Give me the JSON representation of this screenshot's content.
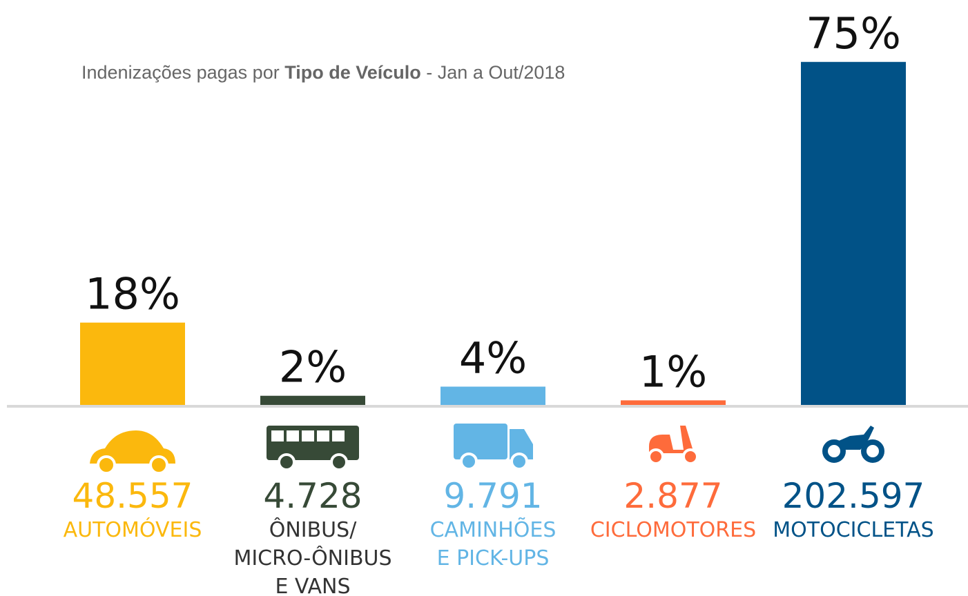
{
  "chart_data": {
    "type": "bar",
    "title": {
      "before": "Indenizações pagas por",
      "bold": "Tipo de Veículo",
      "after": "- Jan a Out/2018"
    },
    "categories": [
      [
        "AUTOMÓVEIS"
      ],
      [
        "ÔNIBUS/",
        "MICRO-ÔNIBUS",
        "E VANS"
      ],
      [
        "CAMINHÕES",
        "E PICK-UPS"
      ],
      [
        "CICLOMOTORES"
      ],
      [
        "MOTOCICLETAS"
      ]
    ],
    "values": [
      18,
      2,
      4,
      1,
      75
    ],
    "value_labels": [
      "18%",
      "2%",
      "4%",
      "1%",
      "75%"
    ],
    "counts": [
      "48.557",
      "4.728",
      "9.791",
      "2.877",
      "202.597"
    ],
    "colors": [
      "#fbb80d",
      "#374a37",
      "#62b5e5",
      "#fe6b3b",
      "#015287"
    ]
  }
}
